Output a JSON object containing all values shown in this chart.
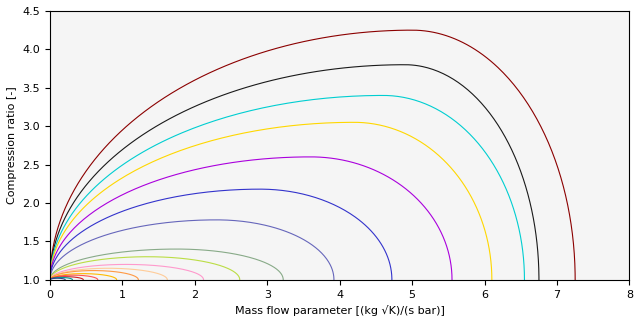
{
  "xlabel": "Mass flow parameter [(kg √K)/(s bar)]",
  "ylabel": "Compression ratio [-]",
  "xlim": [
    0,
    8
  ],
  "ylim": [
    1.0,
    4.5
  ],
  "background_color": "#ffffff",
  "speed_lines": [
    {
      "color": "#8B0000",
      "x_peak": 5.0,
      "x_end": 7.25,
      "max_pr": 4.25,
      "skew": 0.25
    },
    {
      "color": "#1a1a1a",
      "x_peak": 4.9,
      "x_end": 6.75,
      "max_pr": 3.8,
      "skew": 0.25
    },
    {
      "color": "#00CED1",
      "x_peak": 4.6,
      "x_end": 6.55,
      "max_pr": 3.4,
      "skew": 0.25
    },
    {
      "color": "#FFD700",
      "x_peak": 4.2,
      "x_end": 6.1,
      "max_pr": 3.05,
      "skew": 0.25
    },
    {
      "color": "#AA00DD",
      "x_peak": 3.6,
      "x_end": 5.55,
      "max_pr": 2.6,
      "skew": 0.25
    },
    {
      "color": "#3333CC",
      "x_peak": 2.9,
      "x_end": 4.72,
      "max_pr": 2.18,
      "skew": 0.25
    },
    {
      "color": "#6666BB",
      "x_peak": 2.3,
      "x_end": 3.92,
      "max_pr": 1.78,
      "skew": 0.25
    },
    {
      "color": "#88AA88",
      "x_peak": 1.75,
      "x_end": 3.22,
      "max_pr": 1.4,
      "skew": 0.25
    },
    {
      "color": "#BBDD44",
      "x_peak": 1.35,
      "x_end": 2.62,
      "max_pr": 1.3,
      "skew": 0.25
    },
    {
      "color": "#FF99CC",
      "x_peak": 1.05,
      "x_end": 2.12,
      "max_pr": 1.2,
      "skew": 0.25
    },
    {
      "color": "#FFCC99",
      "x_peak": 0.8,
      "x_end": 1.62,
      "max_pr": 1.15,
      "skew": 0.25
    },
    {
      "color": "#FF9944",
      "x_peak": 0.6,
      "x_end": 1.22,
      "max_pr": 1.12,
      "skew": 0.25
    },
    {
      "color": "#FFBB00",
      "x_peak": 0.45,
      "x_end": 0.92,
      "max_pr": 1.08,
      "skew": 0.25
    },
    {
      "color": "#FF5555",
      "x_peak": 0.32,
      "x_end": 0.66,
      "max_pr": 1.06,
      "skew": 0.25
    },
    {
      "color": "#CC2222",
      "x_peak": 0.22,
      "x_end": 0.46,
      "max_pr": 1.04,
      "skew": 0.25
    },
    {
      "color": "#009999",
      "x_peak": 0.15,
      "x_end": 0.31,
      "max_pr": 1.03,
      "skew": 0.25
    },
    {
      "color": "#334488",
      "x_peak": 0.1,
      "x_end": 0.21,
      "max_pr": 1.02,
      "skew": 0.25
    }
  ]
}
